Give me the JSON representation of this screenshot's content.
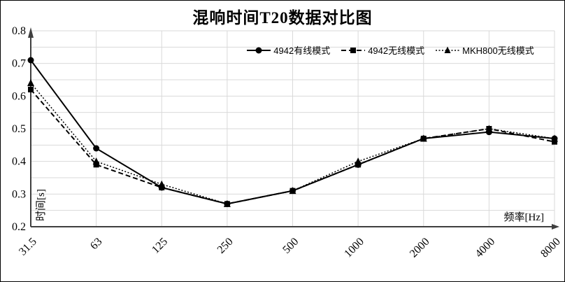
{
  "chart_data": {
    "type": "line",
    "title": "混响时间T20数据对比图",
    "xlabel": "频率[Hz]",
    "ylabel": "时间[s]",
    "categories": [
      "31.5",
      "63",
      "125",
      "250",
      "500",
      "1000",
      "2000",
      "4000",
      "8000"
    ],
    "y_ticks": [
      0.2,
      0.3,
      0.4,
      0.5,
      0.6,
      0.7,
      0.8
    ],
    "ylim": [
      0.2,
      0.8
    ],
    "minor_grid_step": 0.05,
    "grid": true,
    "legend_position": "top-inside",
    "series": [
      {
        "name": "4942有线模式",
        "line": "solid",
        "marker": "circle",
        "values": [
          0.71,
          0.44,
          0.32,
          0.27,
          0.31,
          0.39,
          0.47,
          0.49,
          0.47
        ]
      },
      {
        "name": "4942无线模式",
        "line": "dashed",
        "marker": "square",
        "values": [
          0.62,
          0.39,
          0.32,
          0.27,
          0.31,
          0.39,
          0.47,
          0.5,
          0.46
        ]
      },
      {
        "name": "MKH800无线模式",
        "line": "dotted",
        "marker": "triangle",
        "values": [
          0.64,
          0.4,
          0.33,
          0.27,
          0.31,
          0.4,
          0.47,
          0.5,
          0.47
        ]
      }
    ],
    "colors": {
      "series": "#000000",
      "gridline": "#d9d9d9",
      "axis": "#3f3f3f",
      "text": "#000000",
      "background": "#ffffff"
    }
  }
}
